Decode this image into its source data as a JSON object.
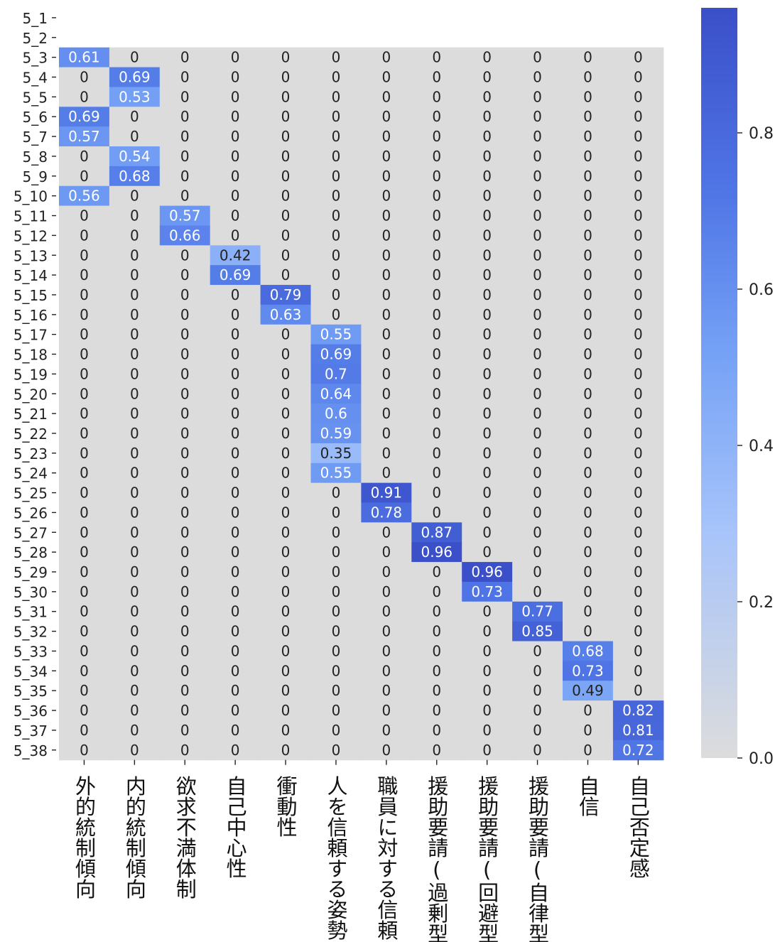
{
  "chart_data": {
    "type": "heatmap",
    "title": "",
    "xlabel": "",
    "ylabel": "",
    "rows": [
      "5_1",
      "5_2",
      "5_3",
      "5_4",
      "5_5",
      "5_6",
      "5_7",
      "5_8",
      "5_9",
      "5_10",
      "5_11",
      "5_12",
      "5_13",
      "5_14",
      "5_15",
      "5_16",
      "5_17",
      "5_18",
      "5_19",
      "5_20",
      "5_21",
      "5_22",
      "5_23",
      "5_24",
      "5_25",
      "5_26",
      "5_27",
      "5_28",
      "5_29",
      "5_30",
      "5_31",
      "5_32",
      "5_33",
      "5_34",
      "5_35",
      "5_36",
      "5_37",
      "5_38"
    ],
    "columns": [
      "外的統制傾向",
      "内的統制傾向",
      "欲求不満体制",
      "自己中心性",
      "衝動性",
      "人を信頼する姿勢",
      "職員に対する信頼",
      "援助要請(過剰型)",
      "援助要請(回避型)",
      "援助要請(自律型)",
      "自信",
      "自己否定感"
    ],
    "nonzero": [
      {
        "row": "5_3",
        "col": 0,
        "value": 0.61
      },
      {
        "row": "5_4",
        "col": 1,
        "value": 0.69
      },
      {
        "row": "5_5",
        "col": 1,
        "value": 0.53
      },
      {
        "row": "5_6",
        "col": 0,
        "value": 0.69
      },
      {
        "row": "5_7",
        "col": 0,
        "value": 0.57
      },
      {
        "row": "5_8",
        "col": 1,
        "value": 0.54
      },
      {
        "row": "5_9",
        "col": 1,
        "value": 0.68
      },
      {
        "row": "5_10",
        "col": 0,
        "value": 0.56
      },
      {
        "row": "5_11",
        "col": 2,
        "value": 0.57
      },
      {
        "row": "5_12",
        "col": 2,
        "value": 0.66
      },
      {
        "row": "5_13",
        "col": 3,
        "value": 0.42
      },
      {
        "row": "5_14",
        "col": 3,
        "value": 0.69
      },
      {
        "row": "5_15",
        "col": 4,
        "value": 0.79
      },
      {
        "row": "5_16",
        "col": 4,
        "value": 0.63
      },
      {
        "row": "5_17",
        "col": 5,
        "value": 0.55
      },
      {
        "row": "5_18",
        "col": 5,
        "value": 0.69
      },
      {
        "row": "5_19",
        "col": 5,
        "value": 0.7
      },
      {
        "row": "5_20",
        "col": 5,
        "value": 0.64
      },
      {
        "row": "5_21",
        "col": 5,
        "value": 0.6
      },
      {
        "row": "5_22",
        "col": 5,
        "value": 0.59
      },
      {
        "row": "5_23",
        "col": 5,
        "value": 0.35
      },
      {
        "row": "5_24",
        "col": 5,
        "value": 0.55
      },
      {
        "row": "5_25",
        "col": 6,
        "value": 0.91
      },
      {
        "row": "5_26",
        "col": 6,
        "value": 0.78
      },
      {
        "row": "5_27",
        "col": 7,
        "value": 0.87
      },
      {
        "row": "5_28",
        "col": 7,
        "value": 0.96
      },
      {
        "row": "5_29",
        "col": 8,
        "value": 0.96
      },
      {
        "row": "5_30",
        "col": 8,
        "value": 0.73
      },
      {
        "row": "5_31",
        "col": 9,
        "value": 0.77
      },
      {
        "row": "5_32",
        "col": 9,
        "value": 0.85
      },
      {
        "row": "5_33",
        "col": 10,
        "value": 0.68
      },
      {
        "row": "5_34",
        "col": 10,
        "value": 0.73
      },
      {
        "row": "5_35",
        "col": 10,
        "value": 0.49
      },
      {
        "row": "5_36",
        "col": 11,
        "value": 0.82
      },
      {
        "row": "5_37",
        "col": 11,
        "value": 0.81
      },
      {
        "row": "5_38",
        "col": 11,
        "value": 0.72
      }
    ],
    "empty_rows": [
      "5_1",
      "5_2"
    ],
    "zero_label": "0",
    "colorbar": {
      "vmin": 0.0,
      "vmax": 0.96,
      "ticks": [
        0.0,
        0.2,
        0.4,
        0.6,
        0.8
      ],
      "tick_labels": [
        "0.0",
        "0.2",
        "0.4",
        "0.6",
        "0.8"
      ],
      "color_low": "#dcdcdc",
      "color_high": "#3a4fc8"
    }
  }
}
